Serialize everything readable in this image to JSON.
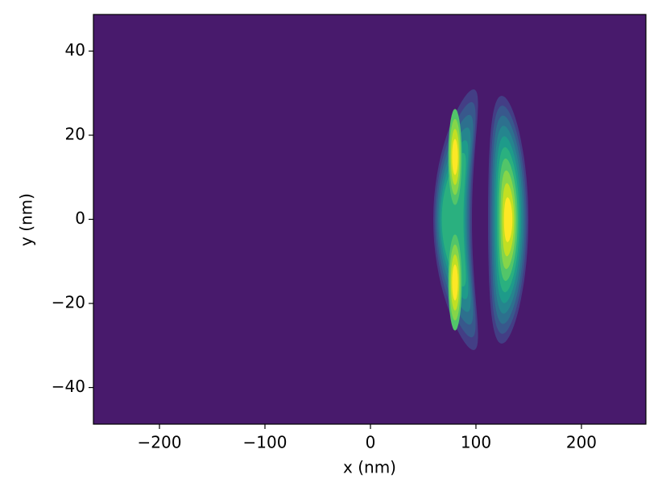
{
  "chart_data": {
    "type": "contour",
    "xlabel": "x (nm)",
    "ylabel": "y (nm)",
    "xlim": [
      -262.6,
      261.1
    ],
    "ylim": [
      -48.7,
      48.7
    ],
    "xticks": [
      {
        "value": -200,
        "label": "−200"
      },
      {
        "value": -100,
        "label": "−100"
      },
      0,
      100,
      200
    ],
    "yticks": [
      {
        "value": -40,
        "label": "−40"
      },
      {
        "value": -20,
        "label": "−20"
      },
      0,
      20,
      40
    ],
    "colormap": [
      "#481a6c",
      "#433e85",
      "#38588c",
      "#2d708e",
      "#25858e",
      "#1e9b8a",
      "#2ab07f",
      "#52c569",
      "#86d549",
      "#c2df23",
      "#fde725"
    ]
  }
}
